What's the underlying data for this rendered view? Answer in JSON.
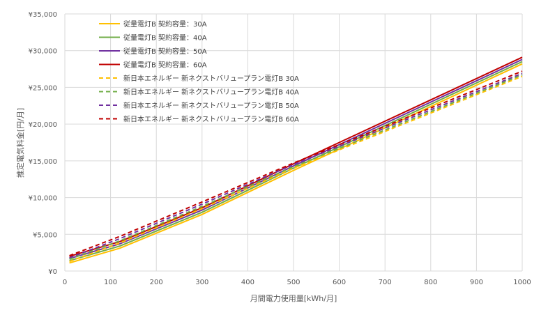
{
  "chart_data": {
    "type": "line",
    "title": "",
    "xlabel": "月間電力使用量[kWh/月]",
    "ylabel": "推定電気料金[円/月]",
    "xlim": [
      0,
      1000
    ],
    "ylim": [
      0,
      35000
    ],
    "x_ticks": [
      "0",
      "100",
      "200",
      "300",
      "400",
      "500",
      "600",
      "700",
      "800",
      "900",
      "1000"
    ],
    "y_ticks": [
      "¥0",
      "¥5,000",
      "¥10,000",
      "¥15,000",
      "¥20,000",
      "¥25,000",
      "¥30,000",
      "¥35,000"
    ],
    "grid": "both",
    "legend_position": "top-left",
    "x": [
      10,
      120,
      300,
      500,
      1000
    ],
    "series": [
      {
        "name": "従量電灯B 契約容量：30A",
        "color": "#ffc000",
        "dash": false,
        "values": [
          1100,
          3100,
          7700,
          13700,
          28200
        ]
      },
      {
        "name": "従量電灯B 契約容量：40A",
        "color": "#70ad47",
        "dash": false,
        "values": [
          1400,
          3400,
          8000,
          14000,
          28500
        ]
      },
      {
        "name": "従量電灯B 契約容量：50A",
        "color": "#7030a0",
        "dash": false,
        "values": [
          1700,
          3700,
          8300,
          14300,
          28800
        ]
      },
      {
        "name": "従量電灯B 契約容量：60A",
        "color": "#c00000",
        "dash": false,
        "values": [
          2000,
          4000,
          8600,
          14600,
          29100
        ]
      },
      {
        "name": "新日本エネルギー 新ネクストバリュープラン電灯B 30A",
        "color": "#ffc000",
        "dash": true,
        "values": [
          1300,
          3800,
          8500,
          14000,
          26500
        ]
      },
      {
        "name": "新日本エネルギー 新ネクストバリュープラン電灯B 40A",
        "color": "#70ad47",
        "dash": true,
        "values": [
          1600,
          4100,
          8800,
          14200,
          26700
        ]
      },
      {
        "name": "新日本エネルギー 新ネクストバリュープラン電灯B 50A",
        "color": "#7030a0",
        "dash": true,
        "values": [
          1800,
          4400,
          9100,
          14500,
          26900
        ]
      },
      {
        "name": "新日本エネルギー 新ネクストバリュープラン電灯B 60A",
        "color": "#c00000",
        "dash": true,
        "values": [
          2100,
          4700,
          9400,
          14700,
          27200
        ]
      }
    ]
  }
}
